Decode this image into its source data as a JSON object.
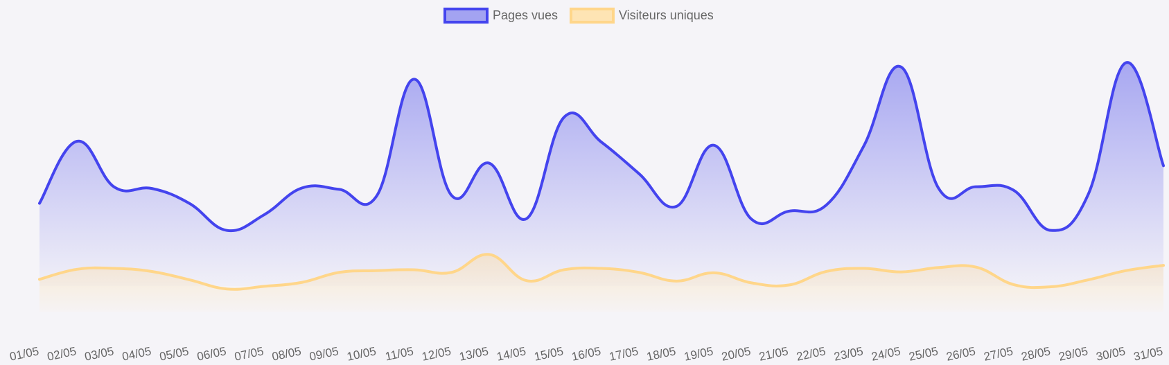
{
  "chart_data": {
    "type": "area",
    "categories": [
      "01/05",
      "02/05",
      "03/05",
      "04/05",
      "05/05",
      "06/05",
      "07/05",
      "08/05",
      "09/05",
      "10/05",
      "11/05",
      "12/05",
      "13/05",
      "14/05",
      "15/05",
      "16/05",
      "17/05",
      "18/05",
      "19/05",
      "20/05",
      "21/05",
      "22/05",
      "23/05",
      "24/05",
      "25/05",
      "26/05",
      "27/05",
      "28/05",
      "29/05",
      "30/05",
      "31/05"
    ],
    "series": [
      {
        "name": "Pages vues",
        "color": "#4444ee",
        "fill_color": "#9a9af0",
        "values": [
          248,
          390,
          285,
          282,
          248,
          186,
          222,
          283,
          280,
          265,
          532,
          266,
          340,
          213,
          445,
          388,
          316,
          241,
          381,
          212,
          230,
          244,
          379,
          560,
          282,
          286,
          278,
          186,
          270,
          570,
          334
        ]
      },
      {
        "name": "Visiteurs uniques",
        "color": "#ffd68a",
        "fill_color": "#ffe0a8",
        "values": [
          74,
          97,
          99,
          92,
          73,
          52,
          58,
          67,
          90,
          94,
          96,
          90,
          131,
          71,
          96,
          99,
          90,
          70,
          89,
          66,
          61,
          92,
          99,
          91,
          101,
          102,
          62,
          57,
          73,
          94,
          106
        ]
      }
    ],
    "ylim": [
      0,
      650
    ],
    "grid": false,
    "legend": "top-center"
  }
}
